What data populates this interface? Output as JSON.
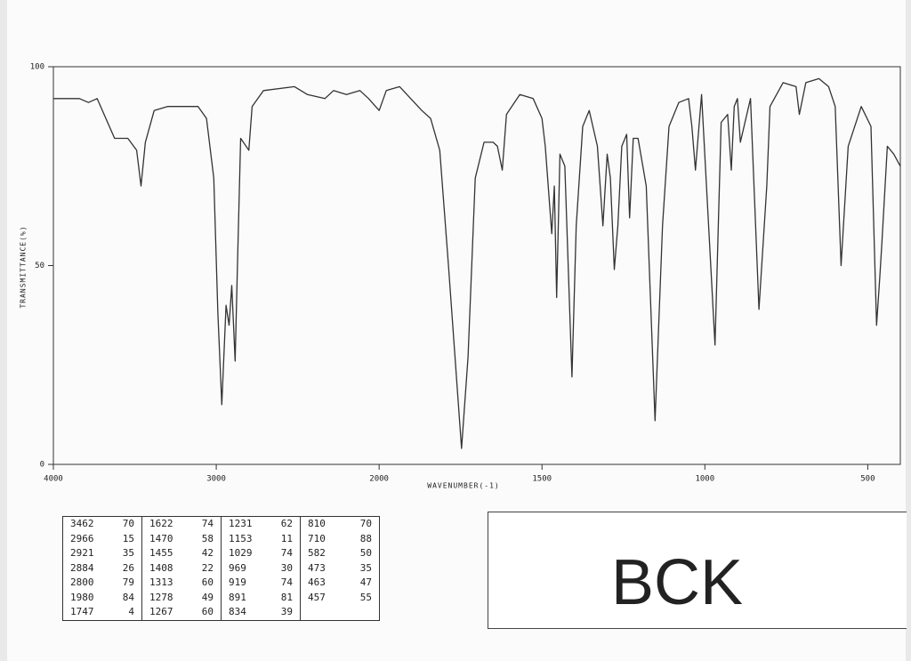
{
  "chart_data": {
    "type": "line",
    "ylabel": "TRANSMITTANCE(%)",
    "xlabel": "WAVENUMBER(-1)",
    "xlim": [
      4000,
      400
    ],
    "x_scale_break": 2000,
    "xticks": [
      4000,
      3000,
      2000,
      1500,
      1000,
      500
    ],
    "ylim": [
      0,
      100
    ],
    "yticks": [
      0,
      50,
      100
    ],
    "color": "#333333",
    "x": [
      4000,
      3840,
      3785,
      3731,
      3624,
      3543,
      3489,
      3462,
      3435,
      3381,
      3300,
      3112,
      3060,
      3015,
      2990,
      2966,
      2940,
      2921,
      2905,
      2884,
      2870,
      2850,
      2800,
      2780,
      2710,
      2520,
      2440,
      2333,
      2280,
      2200,
      2118,
      2065,
      2000,
      1978,
      1937,
      1869,
      1842,
      1814,
      1787,
      1747,
      1727,
      1705,
      1678,
      1650,
      1637,
      1622,
      1609,
      1568,
      1527,
      1500,
      1490,
      1470,
      1462,
      1455,
      1445,
      1430,
      1408,
      1395,
      1375,
      1355,
      1330,
      1313,
      1300,
      1290,
      1278,
      1267,
      1255,
      1240,
      1231,
      1220,
      1205,
      1180,
      1153,
      1130,
      1110,
      1080,
      1050,
      1040,
      1029,
      1010,
      969,
      950,
      930,
      919,
      910,
      900,
      891,
      860,
      834,
      810,
      800,
      760,
      720,
      710,
      690,
      650,
      620,
      600,
      582,
      560,
      520,
      490,
      473,
      463,
      457,
      440,
      420,
      400
    ],
    "values": [
      92,
      92,
      91,
      92,
      82,
      82,
      79,
      70,
      81,
      89,
      90,
      90,
      87,
      72,
      38,
      15,
      40,
      35,
      45,
      26,
      50,
      82,
      79,
      90,
      94,
      95,
      93,
      92,
      94,
      93,
      94,
      92,
      89,
      94,
      95,
      89,
      87,
      79,
      50,
      4,
      27,
      72,
      81,
      81,
      80,
      74,
      88,
      93,
      92,
      87,
      80,
      58,
      70,
      42,
      78,
      75,
      22,
      60,
      85,
      89,
      80,
      60,
      78,
      72,
      49,
      60,
      80,
      83,
      62,
      82,
      82,
      70,
      11,
      60,
      85,
      91,
      92,
      85,
      74,
      93,
      30,
      86,
      88,
      74,
      90,
      92,
      81,
      92,
      39,
      70,
      90,
      96,
      95,
      88,
      96,
      97,
      95,
      90,
      50,
      80,
      90,
      85,
      35,
      47,
      55,
      80,
      78,
      75
    ]
  },
  "peak_table": {
    "columns": [
      [
        [
          3462,
          70
        ],
        [
          2966,
          15
        ],
        [
          2921,
          35
        ],
        [
          2884,
          26
        ],
        [
          2800,
          79
        ],
        [
          1980,
          84
        ],
        [
          1747,
          4
        ]
      ],
      [
        [
          1622,
          74
        ],
        [
          1470,
          58
        ],
        [
          1455,
          42
        ],
        [
          1408,
          22
        ],
        [
          1313,
          60
        ],
        [
          1278,
          49
        ],
        [
          1267,
          60
        ]
      ],
      [
        [
          1231,
          62
        ],
        [
          1153,
          11
        ],
        [
          1029,
          74
        ],
        [
          969,
          30
        ],
        [
          919,
          74
        ],
        [
          891,
          81
        ],
        [
          834,
          39
        ]
      ],
      [
        [
          810,
          70
        ],
        [
          710,
          88
        ],
        [
          582,
          50
        ],
        [
          473,
          35
        ],
        [
          463,
          47
        ],
        [
          457,
          55
        ]
      ]
    ]
  },
  "sample_label": "BCK"
}
